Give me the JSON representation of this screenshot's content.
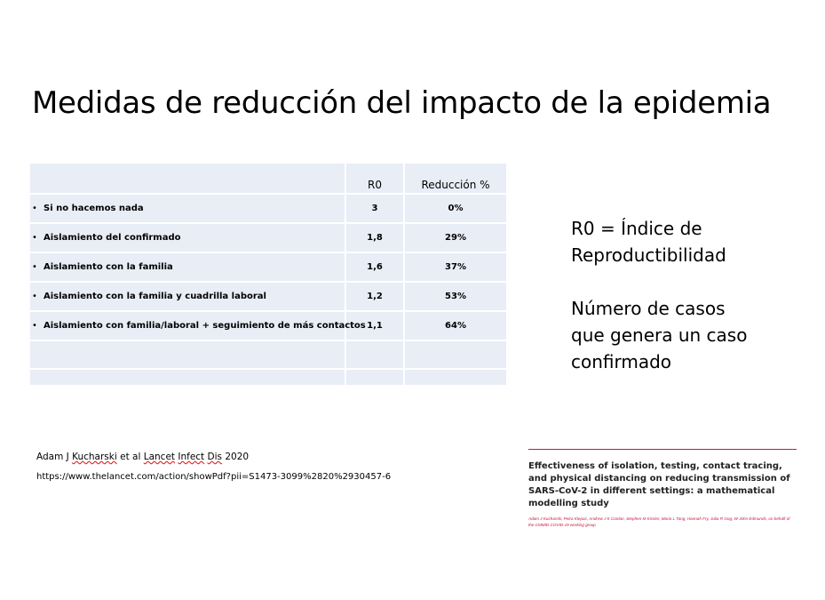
{
  "slide": {
    "title": "Medidas de reducción del impacto de la epidemia"
  },
  "table": {
    "headers": [
      "",
      "R0",
      "Reducción %"
    ],
    "rows": [
      {
        "label": "Si no hacemos nada",
        "r0": "3",
        "reduccion": "0%"
      },
      {
        "label": "Aislamiento del confirmado",
        "r0": "1,8",
        "reduccion": "29%"
      },
      {
        "label": "Aislamiento con la familia",
        "r0": "1,6",
        "reduccion": "37%"
      },
      {
        "label": "Aislamiento con la familia y cuadrilla laboral",
        "r0": "1,2",
        "reduccion": "53%"
      },
      {
        "label": "Aislamiento con familia/laboral + seguimiento de más contactos",
        "r0": "1,1",
        "reduccion": "64%"
      }
    ],
    "bullet": "•"
  },
  "definition": {
    "line1": "R0 = Índice de",
    "line2": "Reproductibilidad",
    "line3": "Número de casos",
    "line4": "que genera un caso",
    "line5": "confirmado"
  },
  "citation": {
    "pre": "Adam J ",
    "name": "Kucharski",
    "mid": " et al ",
    "w1": "Lancet",
    "sp1": " ",
    "w2": "Infect",
    "sp2": " ",
    "w3": "Dis",
    "post": " 2020",
    "url": "https://www.thelancet.com/action/showPdf?pii=S1473-3099%2820%2930457-6"
  },
  "paper": {
    "title": "Effectiveness of isolation, testing, contact tracing, and physical distancing on reducing transmission of SARS-CoV-2 in different settings: a mathematical modelling study",
    "authors": "Adam J Kucharski, Petra Klepac, Andrew J K Conlan, Stephen M Kissler, Maria L Tang, Hannah Fry, Julia R Gog, W John Edmunds, on behalf of the CMMID COVID-19 working group"
  },
  "colors": {
    "table_bg": "#e9edf6",
    "accent_red": "#d1123e"
  }
}
